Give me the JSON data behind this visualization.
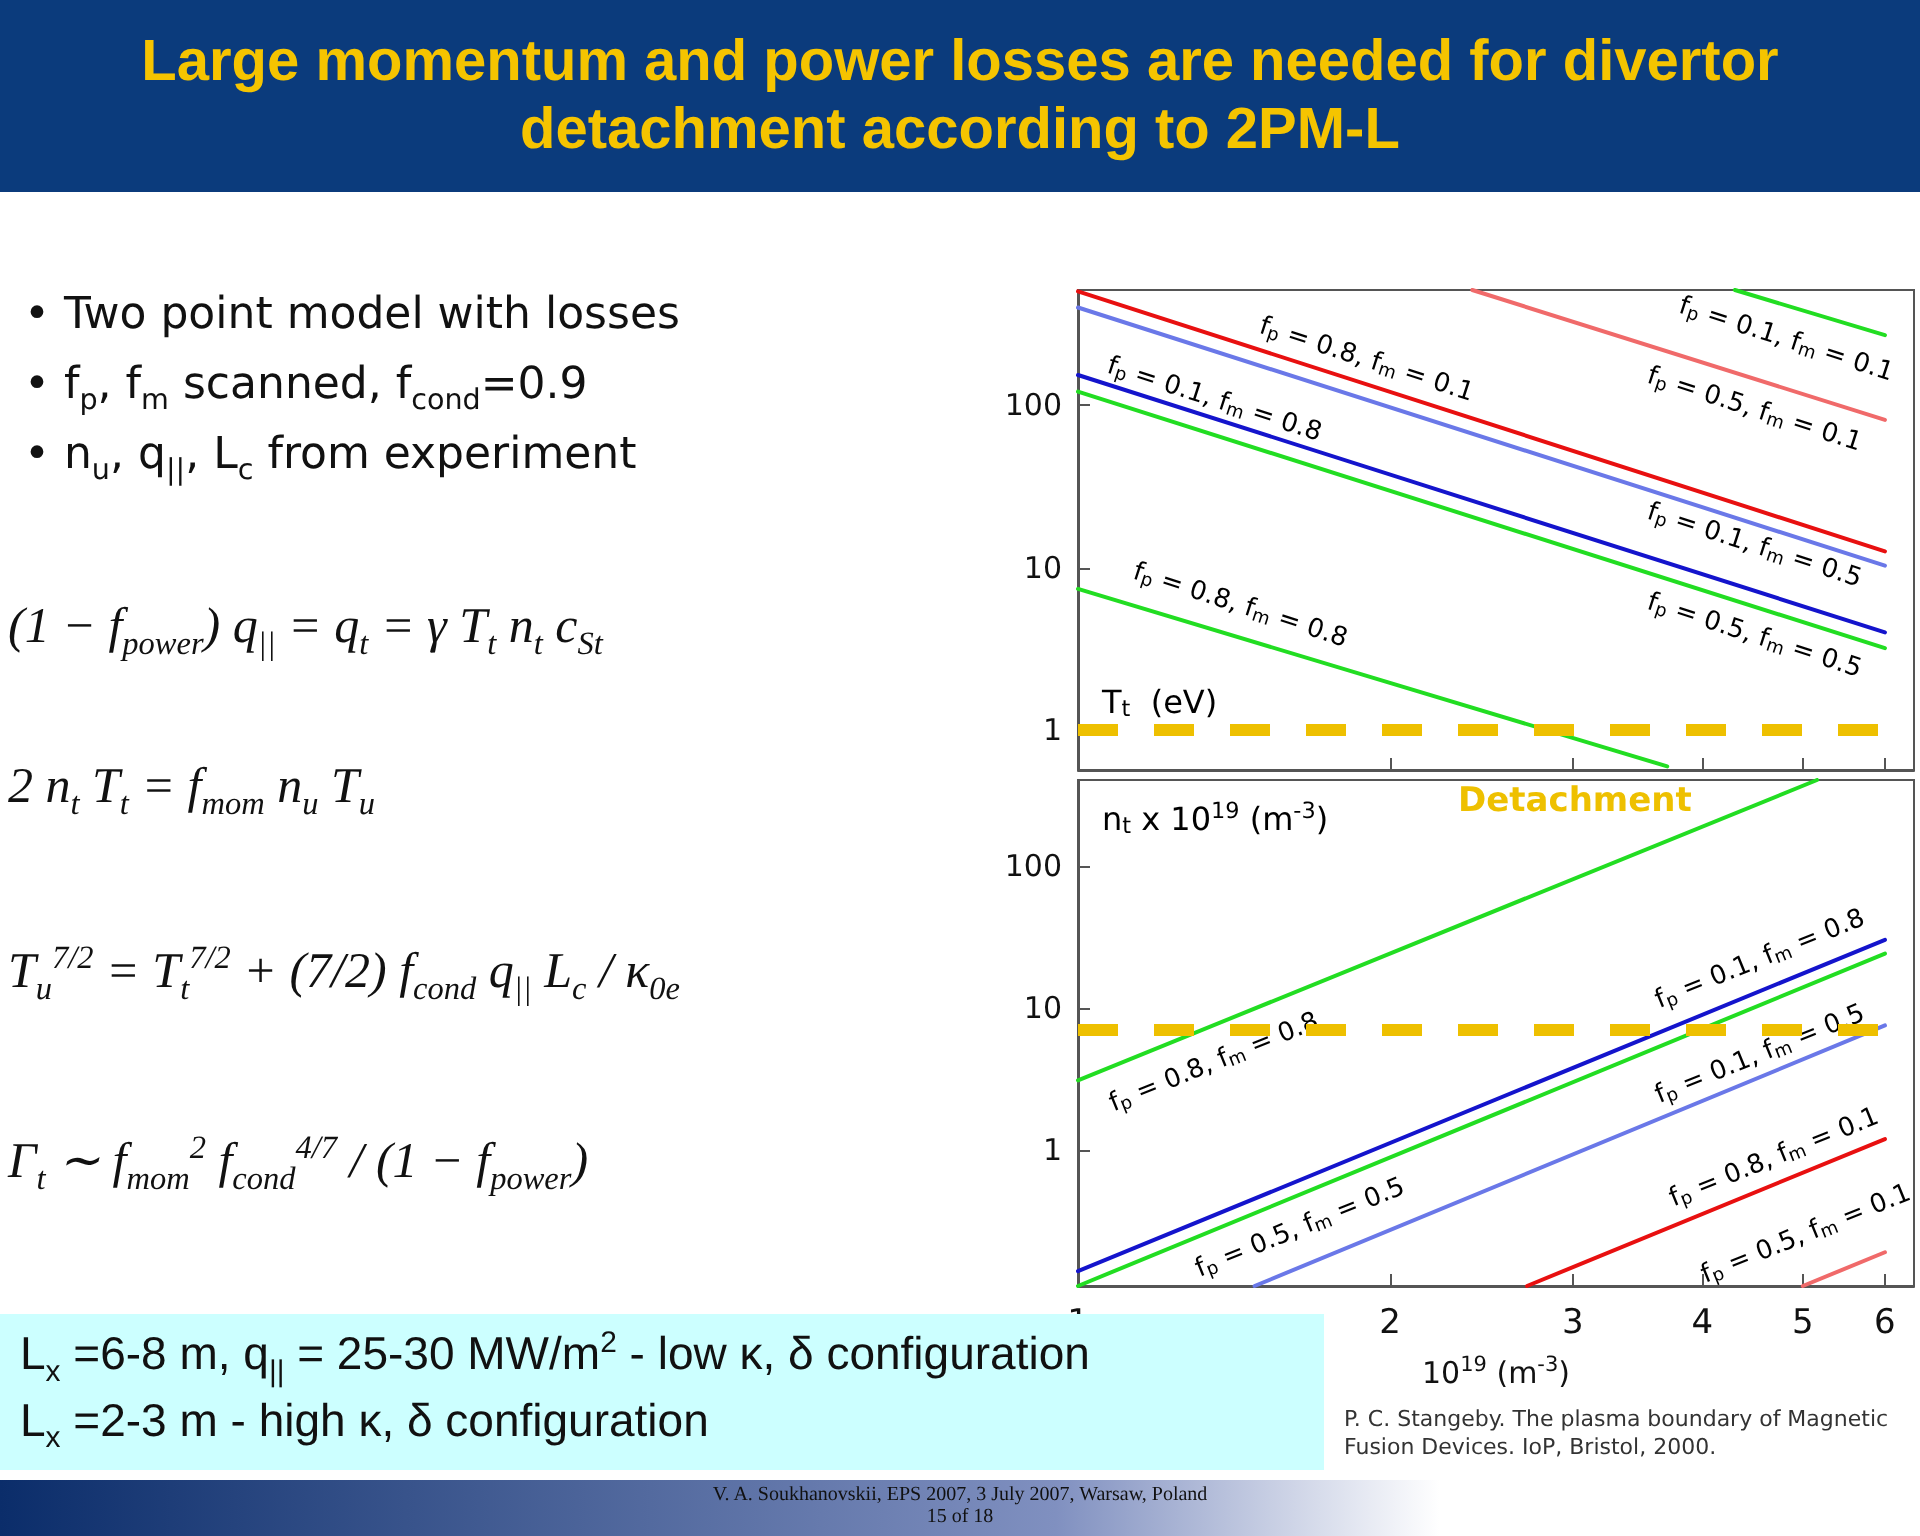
{
  "chart_data": [
    {
      "type": "line",
      "title": "Large momentum and power losses are needed for divertor detachment according to 2PM-L",
      "ylabel": "T$_{t}$  (eV)",
      "log": "xy",
      "grid": false,
      "marker": "none",
      "line_style": "solid",
      "tick_labels": "y",
      "xlim": [
        1,
        6.4
      ],
      "xticks": [
        1,
        2,
        3,
        4,
        5,
        6
      ],
      "ylim": [
        0.57,
        510
      ],
      "yticks": [
        1,
        10,
        100
      ],
      "series": [
        {
          "color": "#e81010",
          "x": [
            1,
            6
          ],
          "values": [
            500,
            12.6
          ]
        },
        {
          "color": "#6a78e8",
          "x": [
            1,
            6
          ],
          "values": [
            398,
            10.3
          ]
        },
        {
          "color": "#1414cc",
          "x": [
            1,
            6
          ],
          "values": [
            153,
            4.0
          ]
        },
        {
          "color": "#22dd22",
          "x": [
            1,
            6
          ],
          "values": [
            121,
            3.2
          ]
        },
        {
          "color": "#22dd22",
          "x": [
            1,
            3.7
          ],
          "values": [
            7.4,
            0.6
          ]
        },
        {
          "color": "#f06a6a",
          "x": [
            2.4,
            6
          ],
          "values": [
            510,
            81
          ]
        },
        {
          "color": "#22dd22",
          "x": [
            4.3,
            6
          ],
          "values": [
            510,
            269
          ]
        }
      ],
      "ref_lines": [
        {
          "axis": "y",
          "value": 1,
          "color": "#eec000",
          "line_style": "dashed"
        }
      ],
      "annotations": [
        "• Two point model with losses",
        "• f$_{p}$, f$_{m}$ scanned, f$_{cond}$=0.9",
        "• n$_{u}$, q$_{||}$, L$_{c}$ from experiment",
        "(1 − f$_{power}$) q$_{||}$ = q$_{t}$ = γ T$_{t}$ n$_{t}$ c$_{St}$",
        "2 n$_{t}$ T$_{t}$ = f$_{mom}$ n$_{u}$ T$_{u}$",
        "T$_{u}$$^{7/2}$ = T$_{t}$$^{7/2}$ + (7/2) f$_{cond}$ q$_{||}$ L$_{c}$ / κ$_{0e}$",
        "Γ$_{t}$ ∼ f$_{mom}$$^{2}$ f$_{cond}$$^{4/7}$ / (1 − f$_{power}$)",
        "L$_{x}$ =6-8 m, q$_{||}$ = 25-30 MW/m$^{2}$ - low κ, δ configuration",
        "L$_{x}$ =2-3 m - high κ, δ configuration",
        "P. C. Stangeby. The plasma boundary of Magnetic Fusion Devices. IoP, Bristol, 2000.",
        "V. A. Soukhanovskii, EPS 2007, 3 July 2007, Warsaw, Poland",
        "15 of 18",
        "f$_{p}$ = 0.8, f$_{m}$ = 0.1",
        "f$_{p}$ = 0.1, f$_{m}$ = 0.8",
        "f$_{p}$ = 0.8, f$_{m}$ = 0.8",
        "f$_{p}$ = 0.1, f$_{m}$ = 0.1",
        "f$_{p}$ = 0.5, f$_{m}$ = 0.1",
        "f$_{p}$ = 0.1, f$_{m}$ = 0.5",
        "f$_{p}$ = 0.5, f$_{m}$ = 0.5"
      ]
    },
    {
      "type": "line",
      "xlabel": "10$^{19}$ (m$^{-3}$)",
      "ylabel": "n$_{t}$ x 10$^{19}$ (m$^{-3}$)",
      "log": "xy",
      "grid": false,
      "marker": "none",
      "line_style": "solid",
      "xlim": [
        1,
        6.4
      ],
      "xticks": [
        1,
        2,
        3,
        4,
        5,
        6
      ],
      "ylim": [
        0.11,
        400
      ],
      "yticks": [
        1,
        10,
        100
      ],
      "series": [
        {
          "color": "#22dd22",
          "x": [
            1,
            5.16
          ],
          "values": [
            3.08,
            400
          ]
        },
        {
          "color": "#1414cc",
          "x": [
            1,
            6
          ],
          "values": [
            0.14,
            30
          ]
        },
        {
          "color": "#22dd22",
          "x": [
            1,
            6
          ],
          "values": [
            0.11,
            24
          ]
        },
        {
          "color": "#6a78e8",
          "x": [
            1.48,
            6
          ],
          "values": [
            0.11,
            7.5
          ]
        },
        {
          "color": "#e81010",
          "x": [
            2.71,
            6
          ],
          "values": [
            0.11,
            1.19
          ]
        },
        {
          "color": "#f06a6a",
          "x": [
            5.0,
            6
          ],
          "values": [
            0.11,
            0.19
          ]
        }
      ],
      "ref_lines": [
        {
          "axis": "y",
          "value": 7,
          "color": "#eec000",
          "line_style": "dashed"
        }
      ],
      "annotations": [
        "Detachment",
        "f$_{p}$ = 0.8, f$_{m}$ = 0.8",
        "f$_{p}$ = 0.1, f$_{m}$ = 0.8",
        "f$_{p}$ = 0.1, f$_{m}$ = 0.5",
        "f$_{p}$ = 0.8, f$_{m}$ = 0.1",
        "f$_{p}$ = 0.5, f$_{m}$ = 0.1",
        "f$_{p}$ = 0.5, f$_{m}$ = 0.5"
      ]
    }
  ]
}
